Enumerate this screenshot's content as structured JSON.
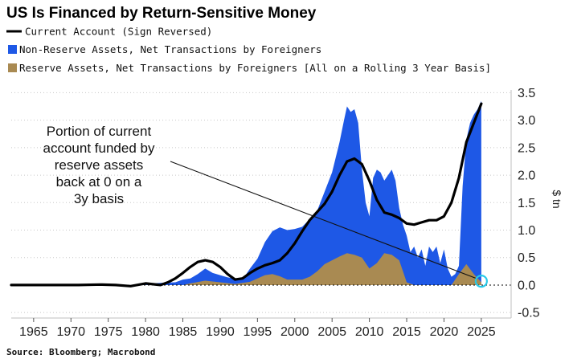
{
  "chart_data": {
    "type": "area",
    "title": "US Is Financed by Return-Sensitive Money",
    "legend": {
      "placement": "top-left",
      "items": [
        {
          "label": "Current Account (Sign Reversed)",
          "swatch": "line",
          "color": "#000000"
        },
        {
          "label": "Non-Reserve Assets, Net Transactions by Foreigners",
          "swatch": "square",
          "color": "#1e58e6"
        },
        {
          "label": "Reserve Assets, Net Transactions by Foreigners [All on a Rolling 3 Year Basis]",
          "swatch": "square",
          "color": "#a98a52"
        }
      ]
    },
    "ylabel": "$ tn",
    "ylim": [
      -0.6,
      3.55
    ],
    "xlim": [
      1962,
      2029
    ],
    "y_ticks": [
      "3.5",
      "3.0",
      "2.5",
      "2.0",
      "1.5",
      "1.0",
      "0.5",
      "0.0",
      "-0.5"
    ],
    "y_tick_values": [
      3.5,
      3.0,
      2.5,
      2.0,
      1.5,
      1.0,
      0.5,
      0.0,
      -0.5
    ],
    "x_ticks": [
      "1965",
      "1970",
      "1975",
      "1980",
      "1985",
      "1990",
      "1995",
      "2000",
      "2005",
      "2010",
      "2015",
      "2020",
      "2025"
    ],
    "x_tick_values": [
      1965,
      1970,
      1975,
      1980,
      1985,
      1990,
      1995,
      2000,
      2005,
      2010,
      2015,
      2020,
      2025
    ],
    "grid": "horizontal-dotted",
    "series": [
      {
        "name": "Current Account (Sign Reversed)",
        "kind": "line",
        "color": "#000000",
        "x": [
          1962,
          1965,
          1968,
          1971,
          1974,
          1976,
          1978,
          1980,
          1982,
          1983,
          1984,
          1985,
          1986,
          1987,
          1988,
          1989,
          1990,
          1991,
          1992,
          1993,
          1994,
          1995,
          1996,
          1997,
          1998,
          1999,
          2000,
          2001,
          2002,
          2003,
          2004,
          2005,
          2006,
          2007,
          2008,
          2009,
          2010,
          2011,
          2012,
          2013,
          2014,
          2015,
          2016,
          2017,
          2018,
          2019,
          2020,
          2021,
          2022,
          2023,
          2024,
          2025
        ],
        "y": [
          0.0,
          0.0,
          0.0,
          0.0,
          0.01,
          0.0,
          -0.02,
          0.03,
          0.0,
          0.05,
          0.12,
          0.22,
          0.33,
          0.42,
          0.45,
          0.42,
          0.33,
          0.2,
          0.1,
          0.12,
          0.22,
          0.3,
          0.36,
          0.4,
          0.45,
          0.58,
          0.76,
          0.98,
          1.18,
          1.33,
          1.48,
          1.7,
          2.0,
          2.25,
          2.3,
          2.2,
          1.9,
          1.55,
          1.32,
          1.28,
          1.22,
          1.12,
          1.1,
          1.14,
          1.18,
          1.18,
          1.25,
          1.5,
          1.95,
          2.6,
          2.95,
          3.3
        ]
      },
      {
        "name": "Non-Reserve Assets, Net Transactions by Foreigners",
        "kind": "area",
        "color": "#1e58e6",
        "x": [
          1962,
          1978,
          1980,
          1982,
          1984,
          1985,
          1986,
          1987,
          1988,
          1989,
          1990,
          1991,
          1992,
          1993,
          1994,
          1995,
          1996,
          1997,
          1998,
          1999,
          2000,
          2001,
          2002,
          2003,
          2004,
          2005,
          2006,
          2006.6,
          2007,
          2007.5,
          2008,
          2008.5,
          2009,
          2009.5,
          2010,
          2010.5,
          2011,
          2011.5,
          2012,
          2012.5,
          2013,
          2013.5,
          2014,
          2014.5,
          2015,
          2015.5,
          2016,
          2016.5,
          2017,
          2017.5,
          2018,
          2018.5,
          2019,
          2019.5,
          2020,
          2020.5,
          2021,
          2021.5,
          2022,
          2022.5,
          2023,
          2023.5,
          2024,
          2024.5,
          2025
        ],
        "y": [
          0.0,
          0.0,
          0.02,
          0.04,
          0.05,
          0.1,
          0.12,
          0.2,
          0.3,
          0.22,
          0.18,
          0.14,
          0.12,
          0.1,
          0.3,
          0.48,
          0.78,
          0.98,
          1.05,
          1.0,
          1.02,
          1.06,
          1.2,
          1.35,
          1.7,
          2.05,
          2.6,
          3.0,
          3.25,
          3.15,
          3.2,
          2.95,
          2.1,
          1.5,
          1.25,
          1.95,
          2.1,
          2.05,
          1.9,
          2.0,
          2.1,
          1.9,
          1.4,
          1.1,
          0.9,
          0.6,
          0.7,
          0.5,
          0.65,
          0.35,
          0.7,
          0.6,
          0.7,
          0.4,
          0.65,
          0.3,
          0.15,
          0.2,
          0.35,
          1.8,
          2.65,
          2.95,
          3.1,
          3.2,
          3.35
        ]
      },
      {
        "name": "Reserve Assets, Net Transactions by Foreigners [All on a Rolling 3 Year Basis]",
        "kind": "area",
        "color": "#a98a52",
        "x": [
          1962,
          1985,
          1986,
          1988,
          1990,
          1992,
          1994,
          1996,
          1997,
          1998,
          1999,
          2000,
          2001,
          2002,
          2003,
          2004,
          2005,
          2006,
          2007,
          2008,
          2009,
          2010,
          2011,
          2012,
          2013,
          2014,
          2015,
          2016,
          2017,
          2018,
          2019,
          2020,
          2021,
          2022,
          2023,
          2024,
          2025
        ],
        "y": [
          0.0,
          0.0,
          0.03,
          0.08,
          0.05,
          0.02,
          0.06,
          0.18,
          0.2,
          0.16,
          0.1,
          0.1,
          0.1,
          0.15,
          0.25,
          0.38,
          0.45,
          0.52,
          0.58,
          0.55,
          0.5,
          0.3,
          0.4,
          0.58,
          0.55,
          0.45,
          0.05,
          0.0,
          0.0,
          0.0,
          0.0,
          0.0,
          0.0,
          0.2,
          0.38,
          0.2,
          0.05
        ]
      }
    ],
    "annotation": {
      "lines": [
        "Portion of current",
        "account funded by",
        "reserve assets",
        "back at 0 on a",
        "3y basis"
      ],
      "points_to": {
        "x": 2025,
        "y": 0.1
      }
    },
    "reference_line": {
      "y": 0.0,
      "style": "dotted",
      "color": "#000000"
    }
  },
  "source": "Source: Bloomberg; Macrobond"
}
